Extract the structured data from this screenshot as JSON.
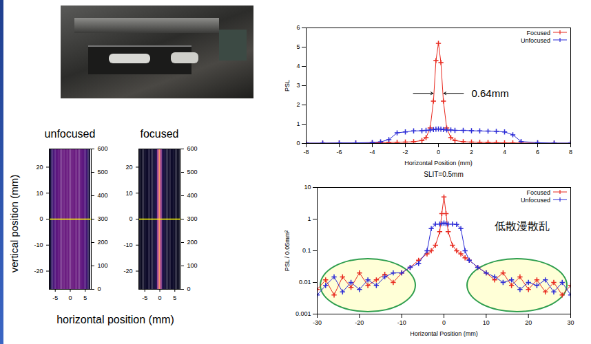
{
  "chart_data": [
    {
      "type": "heatmap",
      "xlabel": "horizontal position (mm)",
      "ylabel": "vertical position (mm)",
      "xlim": [
        -7,
        7
      ],
      "xticks": [
        -5,
        0,
        5
      ],
      "ylim": [
        -27,
        27
      ],
      "yticks": [
        -20,
        -10,
        0,
        10,
        20
      ],
      "color_range": [
        0,
        600
      ],
      "color_ticks": [
        0,
        100,
        200,
        300,
        400,
        500,
        600
      ],
      "hline": {
        "y": 0,
        "color": "#ffff00"
      },
      "panels": [
        {
          "title": "unfocused",
          "x": [
            -6.5,
            -6,
            -5.5,
            -5,
            -4.5,
            -4,
            -3.5,
            -3,
            -2.5,
            -2,
            -1.5,
            -1,
            -0.5,
            0,
            0.5,
            1,
            1.5,
            2,
            2.5,
            3,
            3.5,
            4,
            4.5,
            5,
            5.5,
            6,
            6.5
          ],
          "values": [
            60,
            100,
            130,
            150,
            165,
            175,
            180,
            185,
            188,
            190,
            190,
            192,
            192,
            192,
            192,
            192,
            190,
            190,
            188,
            185,
            180,
            175,
            165,
            150,
            130,
            100,
            60
          ]
        },
        {
          "title": "focused",
          "x": [
            -6.5,
            -6,
            -5.5,
            -5,
            -4.5,
            -4,
            -3.5,
            -3,
            -2.5,
            -2,
            -1.5,
            -1,
            -0.5,
            0,
            0.5,
            1,
            1.5,
            2,
            2.5,
            3,
            3.5,
            4,
            4.5,
            5,
            5.5,
            6,
            6.5
          ],
          "values": [
            30,
            35,
            40,
            40,
            45,
            45,
            50,
            50,
            55,
            60,
            70,
            90,
            250,
            460,
            250,
            90,
            70,
            60,
            55,
            50,
            50,
            45,
            45,
            40,
            40,
            35,
            30
          ]
        }
      ]
    },
    {
      "type": "line",
      "xlabel": "Horizontal Position (mm)",
      "ylabel": "PSL",
      "xlim": [
        -8,
        8
      ],
      "xticks": [
        -8,
        -6,
        -4,
        -2,
        0,
        2,
        4,
        6,
        8
      ],
      "ylim": [
        0,
        6
      ],
      "yticks": [
        0,
        1,
        2,
        3,
        4,
        5,
        6
      ],
      "legend": "top-right",
      "marker": "plus",
      "x": [
        -8,
        -7,
        -6,
        -5,
        -4,
        -3.5,
        -3,
        -2.5,
        -2,
        -1.5,
        -1,
        -0.75,
        -0.5,
        -0.3,
        -0.15,
        0,
        0.15,
        0.3,
        0.5,
        0.75,
        1,
        1.5,
        2,
        2.5,
        3,
        3.5,
        4,
        4.5,
        5,
        6,
        7,
        8
      ],
      "series": [
        {
          "name": "Focused",
          "color": "#e8281e",
          "values": [
            0.01,
            0.01,
            0.02,
            0.02,
            0.03,
            0.04,
            0.05,
            0.06,
            0.07,
            0.09,
            0.15,
            0.3,
            0.8,
            2.2,
            4.3,
            5.2,
            4.2,
            2.2,
            0.8,
            0.3,
            0.15,
            0.09,
            0.07,
            0.06,
            0.05,
            0.04,
            0.03,
            0.03,
            0.02,
            0.02,
            0.01,
            0.01
          ]
        },
        {
          "name": "Unfocused",
          "color": "#2b2bd6",
          "values": [
            0.02,
            0.02,
            0.03,
            0.03,
            0.05,
            0.08,
            0.2,
            0.55,
            0.6,
            0.65,
            0.66,
            0.68,
            0.7,
            0.72,
            0.74,
            0.75,
            0.74,
            0.72,
            0.7,
            0.7,
            0.68,
            0.68,
            0.66,
            0.65,
            0.64,
            0.63,
            0.6,
            0.45,
            0.1,
            0.04,
            0.02,
            0.02
          ]
        }
      ],
      "annotations": [
        {
          "text": "0.64mm",
          "x": 2,
          "y": 2.6,
          "width": 0.64
        }
      ]
    },
    {
      "type": "line",
      "title": "SLIT=0.5mm",
      "xlabel": "Horizontal Position (mm)",
      "ylabel": "PSL / 0.05mm²",
      "log": "y",
      "xlim": [
        -30,
        30
      ],
      "xticks": [
        -30,
        -20,
        -10,
        0,
        10,
        20,
        30
      ],
      "ylim": [
        0.001,
        10
      ],
      "yticks": [
        0.001,
        0.01,
        0.1,
        1,
        10
      ],
      "legend": "top-right",
      "marker": "plus",
      "x": [
        -30,
        -28,
        -26,
        -24,
        -22,
        -20,
        -18,
        -16,
        -14,
        -12,
        -10,
        -8,
        -6,
        -4,
        -3,
        -2,
        -1,
        -0.5,
        0,
        0.5,
        1,
        2,
        3,
        4,
        5,
        6,
        8,
        10,
        12,
        14,
        16,
        18,
        20,
        22,
        24,
        26,
        28,
        30
      ],
      "series": [
        {
          "name": "Focused",
          "color": "#e8281e",
          "values": [
            0.006,
            0.012,
            0.004,
            0.015,
            0.007,
            0.02,
            0.008,
            0.012,
            0.018,
            0.01,
            0.02,
            0.03,
            0.05,
            0.08,
            0.1,
            0.15,
            0.4,
            1.5,
            5,
            1.5,
            0.4,
            0.15,
            0.1,
            0.08,
            0.06,
            0.05,
            0.03,
            0.02,
            0.012,
            0.02,
            0.008,
            0.015,
            0.006,
            0.012,
            0.005,
            0.01,
            0.004,
            0.008
          ]
        },
        {
          "name": "Unfocused",
          "color": "#2b2bd6",
          "values": [
            0.004,
            0.008,
            0.015,
            0.005,
            0.01,
            0.006,
            0.012,
            0.008,
            0.015,
            0.02,
            0.02,
            0.03,
            0.04,
            0.1,
            0.5,
            0.7,
            0.7,
            0.72,
            0.75,
            0.72,
            0.7,
            0.7,
            0.68,
            0.5,
            0.1,
            0.05,
            0.03,
            0.02,
            0.015,
            0.01,
            0.012,
            0.006,
            0.01,
            0.008,
            0.012,
            0.005,
            0.01,
            0.004
          ]
        }
      ],
      "annotations": [
        {
          "text": "低散漫散乱",
          "x": 12,
          "y": 0.6
        }
      ]
    }
  ]
}
